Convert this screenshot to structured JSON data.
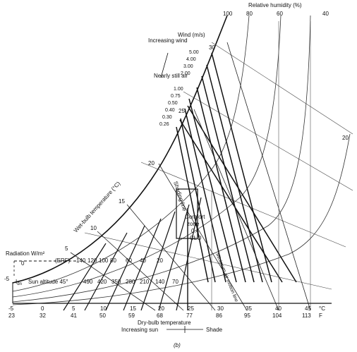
{
  "relative_humidity": {
    "title": "Relative humidity (%)",
    "ticks": [
      "100",
      "80",
      "60",
      "40"
    ],
    "right_label": "20"
  },
  "wind": {
    "title": "Wind (m/s)",
    "increasing": "Increasing wind",
    "still": "Nearly still air",
    "values": [
      "5.00",
      "4.00",
      "3.00",
      "2.00",
      "1.00",
      "0.75",
      "0.50",
      "0.40",
      "0.30",
      "0.26"
    ]
  },
  "wet_bulb": {
    "title": "Wet-bulb temperature (°C)",
    "ticks": [
      "30",
      "25",
      "20",
      "15",
      "10",
      "5",
      "0",
      "-5"
    ]
  },
  "labels": {
    "shading_line": "Shading line",
    "comfort_zone": [
      "Comfort",
      "zone",
      "0.4",
      "CLO"
    ],
    "min_air_motion": "Minimum air motion line",
    "radiation": "Radiation W/m²",
    "erf": "(ERF)",
    "sun_altitude": "Sun altitude 45°",
    "i_dn": "I",
    "i_dn_sub": "dn",
    "figure_label": "(b)"
  },
  "radiation_upper": [
    "140",
    "120",
    "100",
    "80",
    "60",
    "40",
    "20"
  ],
  "radiation_lower": [
    "490",
    "420",
    "350",
    "280",
    "210",
    "140",
    "70"
  ],
  "dry_bulb": {
    "title": "Dry-bulb temperature",
    "celsius": [
      "-5",
      "0",
      "5",
      "10",
      "15",
      "20",
      "25",
      "30",
      "35",
      "40",
      "45"
    ],
    "fahrenheit": [
      "23",
      "32",
      "41",
      "50",
      "59",
      "68",
      "77",
      "86",
      "95",
      "104",
      "113"
    ],
    "unit_c": "°C",
    "unit_f": "F"
  },
  "sun_shade": {
    "increasing_sun": "Increasing sun",
    "shade": "Shade"
  }
}
